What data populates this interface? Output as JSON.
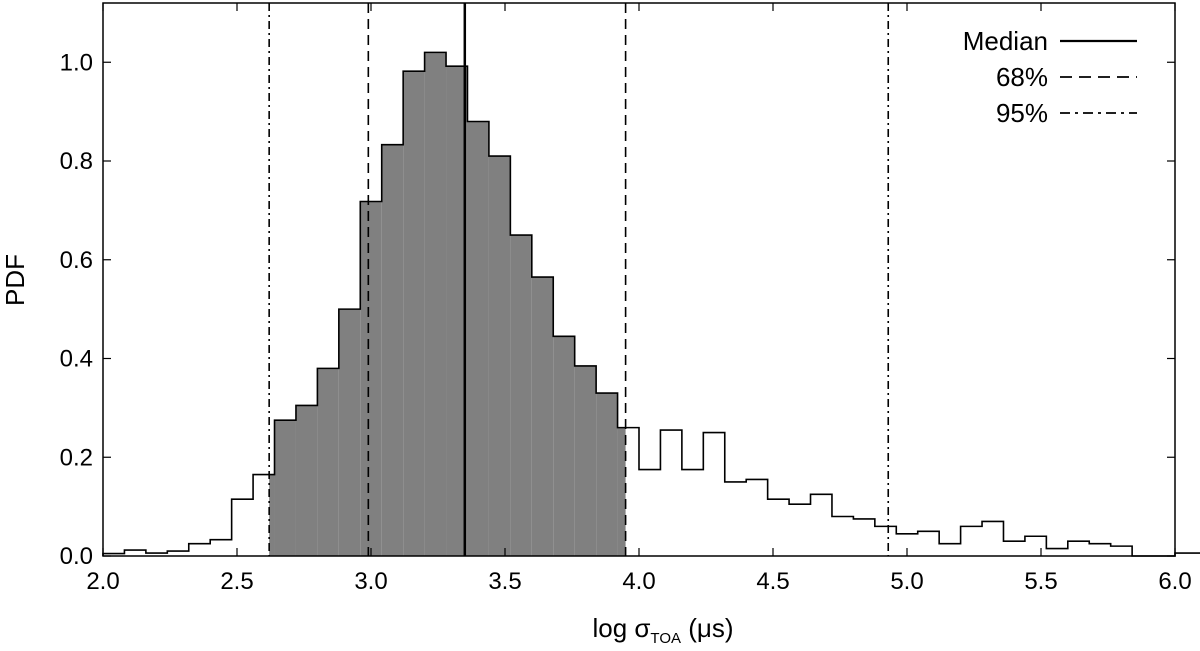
{
  "chart_data": {
    "type": "histogram",
    "xlabel_prefix": "log σ",
    "xlabel_subscript": "TOA",
    "xlabel_suffix": " (μs)",
    "ylabel": "PDF",
    "xlim": [
      2.0,
      6.0
    ],
    "ylim": [
      0.0,
      1.12
    ],
    "xticks": [
      2.0,
      2.5,
      3.0,
      3.5,
      4.0,
      4.5,
      5.0,
      5.5,
      6.0
    ],
    "xtick_labels": [
      "2.0",
      "2.5",
      "3.0",
      "3.5",
      "4.0",
      "4.5",
      "5.0",
      "5.5",
      "6.0"
    ],
    "yticks": [
      0.0,
      0.2,
      0.4,
      0.6,
      0.8,
      1.0
    ],
    "ytick_labels": [
      "0.0",
      "0.2",
      "0.4",
      "0.6",
      "0.8",
      "1.0"
    ],
    "bin_start": 2.0,
    "bin_width": 0.08,
    "bin_values": [
      0.005,
      0.012,
      0.006,
      0.01,
      0.025,
      0.033,
      0.115,
      0.165,
      0.275,
      0.305,
      0.38,
      0.5,
      0.718,
      0.833,
      0.982,
      1.02,
      0.992,
      0.88,
      0.81,
      0.65,
      0.565,
      0.445,
      0.385,
      0.33,
      0.26,
      0.175,
      0.255,
      0.175,
      0.25,
      0.15,
      0.155,
      0.115,
      0.105,
      0.125,
      0.08,
      0.075,
      0.06,
      0.045,
      0.05,
      0.025,
      0.06,
      0.07,
      0.03,
      0.04,
      0.015,
      0.03,
      0.025,
      0.02,
      0.0,
      0.0,
      0.006,
      0.006,
      0.0
    ],
    "shaded_range": [
      2.62,
      3.95
    ],
    "shade_color": "#808080",
    "median": 3.35,
    "interval_68": [
      2.99,
      3.95
    ],
    "interval_95": [
      2.62,
      4.93
    ],
    "legend": [
      {
        "label": "Median",
        "style": "solid"
      },
      {
        "label": "68%",
        "style": "dashed"
      },
      {
        "label": "95%",
        "style": "dashdot"
      }
    ],
    "legend_position": "top-right"
  }
}
